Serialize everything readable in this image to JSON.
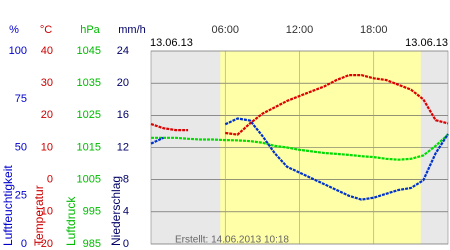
{
  "chart_data": {
    "type": "line",
    "date_start": "13.06.13",
    "date_end": "13.06.13",
    "footer": "Erstellt: 14.06.2013 10:18",
    "x": [
      0,
      1,
      2,
      3,
      4,
      5,
      6,
      7,
      8,
      9,
      10,
      11,
      12,
      13,
      14,
      15,
      16,
      17,
      18,
      19,
      20,
      21,
      22,
      23,
      24
    ],
    "xlim": [
      0,
      24
    ],
    "xticks": [
      {
        "value": 6,
        "label": "06:00"
      },
      {
        "value": 12,
        "label": "12:00"
      },
      {
        "value": 18,
        "label": "18:00"
      }
    ],
    "daylight": [
      5.6,
      21.8
    ],
    "axes": [
      {
        "unit": "%",
        "label": "Luftfeuchtigkeit",
        "color": "#0000cc",
        "ylim": [
          0,
          100
        ],
        "yticks": [
          0,
          25,
          50,
          75,
          100
        ]
      },
      {
        "unit": "°C",
        "label": "Temperatur",
        "color": "#cc0000",
        "ylim": [
          -20,
          40
        ],
        "yticks": [
          -20,
          -10,
          0,
          10,
          20,
          30,
          40
        ]
      },
      {
        "unit": "hPa",
        "label": "Luftdruck",
        "color": "#00bb00",
        "ylim": [
          985,
          1045
        ],
        "yticks": [
          985,
          995,
          1005,
          1015,
          1025,
          1035,
          1045
        ]
      },
      {
        "unit": "mm/h",
        "label": "Niederschlag",
        "color": "#000066",
        "ylim": [
          0,
          24
        ],
        "yticks": [
          0,
          4,
          8,
          12,
          16,
          20,
          24
        ]
      }
    ],
    "series": [
      {
        "axis": 2,
        "color": "#00dd00",
        "values": [
          1018,
          1018,
          1018,
          1017.7,
          1017.5,
          1017.5,
          1017.3,
          1017.2,
          1017,
          1016.5,
          1015.5,
          1015,
          1014.3,
          1013.8,
          1013.3,
          1013,
          1012.7,
          1012.3,
          1012,
          1011.5,
          1011.2,
          1011.5,
          1012.5,
          1015.5,
          1019
        ]
      },
      {
        "axis": 1,
        "color": "#dd0000",
        "values": [
          17.3,
          16,
          15.4,
          15.4,
          null,
          null,
          14.5,
          14,
          17.5,
          20.5,
          22.5,
          24.5,
          26,
          27.5,
          29,
          31,
          32.5,
          32.5,
          31.5,
          31,
          29.5,
          28,
          25,
          18.5,
          17.5
        ]
      },
      {
        "axis": 0,
        "color": "#0033cc",
        "values": [
          52,
          55,
          null,
          null,
          null,
          null,
          62,
          65,
          64,
          56,
          47,
          40,
          37,
          34,
          31,
          28,
          25,
          23,
          24,
          26,
          28,
          29,
          33,
          47,
          57
        ]
      }
    ],
    "grid": true
  }
}
